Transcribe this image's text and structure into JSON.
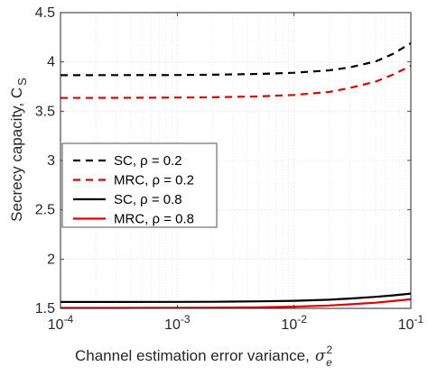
{
  "chart_data": {
    "type": "line",
    "xlabel": "Channel estimation error variance,",
    "xlabel_symbol": "σ",
    "xlabel_sup": "2",
    "xlabel_sub": "e",
    "ylabel": "Secrecy capacity, C",
    "ylabel_sub": "S",
    "x_scale": "log",
    "xlim": [
      0.0001,
      0.1
    ],
    "ylim": [
      1.5,
      4.5
    ],
    "x_ticks": [
      0.0001,
      0.001,
      0.01,
      0.1
    ],
    "x_tick_labels": [
      {
        "base": "10",
        "exp": "-4"
      },
      {
        "base": "10",
        "exp": "-3"
      },
      {
        "base": "10",
        "exp": "-2"
      },
      {
        "base": "10",
        "exp": "-1"
      }
    ],
    "y_ticks": [
      1.5,
      2,
      2.5,
      3,
      3.5,
      4,
      4.5
    ],
    "y_tick_labels": [
      "1.5",
      "2",
      "2.5",
      "3",
      "3.5",
      "4",
      "4.5"
    ],
    "grid": true,
    "legend_position": "middle-left",
    "x": [
      0.0001,
      0.0003,
      0.001,
      0.002,
      0.005,
      0.01,
      0.02,
      0.03,
      0.05,
      0.07,
      0.1
    ],
    "series": [
      {
        "name": "SC, ρ = 0.2",
        "color": "#000000",
        "dash": true,
        "values": [
          3.865,
          3.866,
          3.867,
          3.87,
          3.878,
          3.89,
          3.915,
          3.945,
          4.005,
          4.08,
          4.19
        ]
      },
      {
        "name": "MRC, ρ = 0.2",
        "color": "#e00000",
        "dash": true,
        "values": [
          3.635,
          3.636,
          3.638,
          3.641,
          3.65,
          3.665,
          3.695,
          3.735,
          3.8,
          3.87,
          3.96
        ]
      },
      {
        "name": "SC, ρ = 0.8",
        "color": "#000000",
        "dash": false,
        "values": [
          1.565,
          1.565,
          1.566,
          1.567,
          1.571,
          1.577,
          1.588,
          1.6,
          1.617,
          1.632,
          1.65
        ]
      },
      {
        "name": "MRC, ρ = 0.8",
        "color": "#e00000",
        "dash": false,
        "values": [
          1.505,
          1.505,
          1.506,
          1.507,
          1.511,
          1.517,
          1.529,
          1.541,
          1.558,
          1.574,
          1.592
        ]
      }
    ]
  }
}
